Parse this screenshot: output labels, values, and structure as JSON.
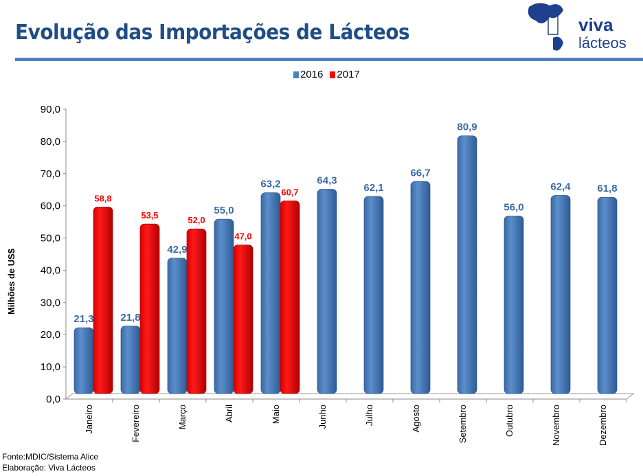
{
  "header": {
    "title": "Evolução das Importações de Lácteos",
    "logo_text": [
      "viva",
      "lácteos"
    ]
  },
  "footer": {
    "source": "Fonte:MDIC/Sistema Alice",
    "elaboration": "Elaboração: Viva Lácteos"
  },
  "colors": {
    "2016": "#4f81bd",
    "2017": "#ff0000",
    "title": "#1f4e86"
  },
  "chart_data": {
    "type": "bar",
    "title": "",
    "xlabel": "",
    "ylabel": "Milhões de US$",
    "ylim": [
      0,
      90
    ],
    "yticks": [
      "0,0",
      "10,0",
      "20,0",
      "30,0",
      "40,0",
      "50,0",
      "60,0",
      "70,0",
      "80,0",
      "90,0"
    ],
    "legend": "top-center",
    "grid": false,
    "categories": [
      "Janeiro",
      "Fevereiro",
      "Março",
      "Abril",
      "Maio",
      "Junho",
      "Julho",
      "Agosto",
      "Setembro",
      "Outubro",
      "Novembro",
      "Dezembro"
    ],
    "series": [
      {
        "name": "2016",
        "values": [
          21.3,
          21.8,
          42.9,
          55.0,
          63.2,
          64.3,
          62.1,
          66.7,
          80.9,
          56.0,
          62.4,
          61.8
        ],
        "labels": [
          "21,3",
          "21,8",
          "42,9",
          "55,0",
          "63,2",
          "64,3",
          "62,1",
          "66,7",
          "80,9",
          "56,0",
          "62,4",
          "61,8"
        ]
      },
      {
        "name": "2017",
        "values": [
          58.8,
          53.5,
          52.0,
          47.0,
          60.7,
          null,
          null,
          null,
          null,
          null,
          null,
          null
        ],
        "labels": [
          "58,8",
          "53,5",
          "52,0",
          "47,0",
          "60,7",
          "",
          "",
          "",
          "",
          "",
          "",
          ""
        ]
      }
    ]
  }
}
